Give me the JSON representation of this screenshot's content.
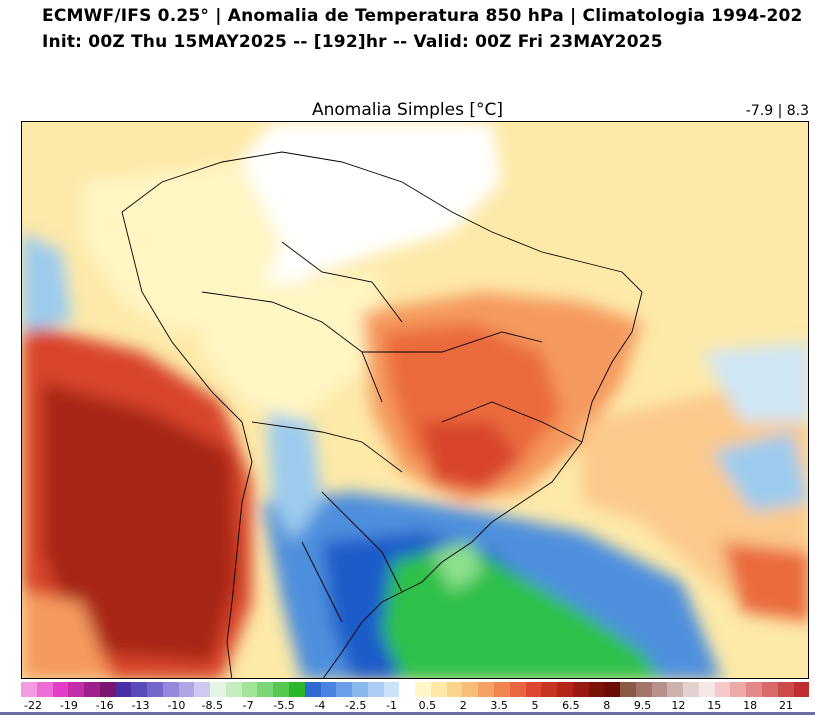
{
  "header": {
    "title_line1": "ECMWF/IFS 0.25° | Anomalia de Temperatura 850 hPa | Climatologia 1994-202",
    "title_line2": "Init: 00Z Thu 15MAY2025 -- [192]hr -- Valid: 00Z Fri 23MAY2025"
  },
  "map": {
    "subtitle": "Anomalia Simples [°C]",
    "range_label": "-7.9 | 8.3",
    "colors": {
      "light_yellow": "#fff6c4",
      "pale_yellow": "#fde9a8",
      "peach": "#fbc98a",
      "orange": "#f59a5e",
      "red_orange": "#ea6a3c",
      "red": "#d9452a",
      "dark_red": "#a82712",
      "pale_blue": "#cfe6f5",
      "light_blue": "#9ccbee",
      "blue": "#4d8fdd",
      "deep_blue": "#1f5bc9",
      "green": "#2ec04a",
      "light_green": "#8ee08e"
    }
  },
  "colorbar": {
    "colors": [
      "#f39be0",
      "#ee6cd6",
      "#e43ec8",
      "#c42fa9",
      "#9e1f8d",
      "#7a1572",
      "#4b2fa8",
      "#5a4bbd",
      "#7468cc",
      "#9488dc",
      "#b0a6e6",
      "#cfc8f0",
      "#e6f4e6",
      "#c5ecbf",
      "#a4e39a",
      "#7dd676",
      "#55c94f",
      "#2ab72a",
      "#2f6ad3",
      "#4b84df",
      "#6a9ee8",
      "#8bb7ef",
      "#abcdf4",
      "#cbe3f8",
      "#ffffff",
      "#fff7c8",
      "#fde8a6",
      "#fbd48c",
      "#f8bd78",
      "#f5a264",
      "#f08550",
      "#ea6640",
      "#df4830",
      "#c93422",
      "#b42518",
      "#981a10",
      "#7a1208",
      "#6b0c06",
      "#8a5a44",
      "#a3756a",
      "#b8918c",
      "#cdb1ad",
      "#e1d2cf",
      "#f5e8e6",
      "#f7c8c8",
      "#eda8a8",
      "#e38989",
      "#d86a6a",
      "#cc4c4c",
      "#bf2f2f"
    ],
    "labels": [
      "-22",
      "-19",
      "-16",
      "-13",
      "-10",
      "-8.5",
      "-7",
      "-5.5",
      "-4",
      "-2.5",
      "-1",
      "0.5",
      "2",
      "3.5",
      "5",
      "6.5",
      "8",
      "9.5",
      "12",
      "15",
      "18",
      "21"
    ]
  }
}
